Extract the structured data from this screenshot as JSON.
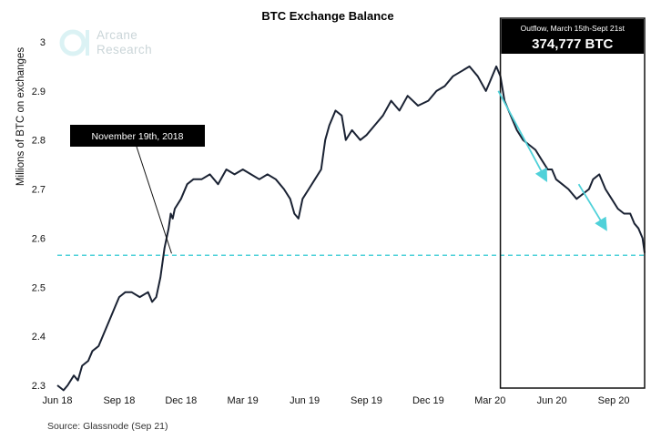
{
  "chart_data": {
    "type": "line",
    "title": "BTC Exchange Balance",
    "ylabel": "Millions of BTC on exchanges",
    "xlabel": "",
    "ylim": [
      2.3,
      3.0
    ],
    "yticks": [
      "2.3",
      "2.4",
      "2.5",
      "2.6",
      "2.7",
      "2.8",
      "2.9",
      "3"
    ],
    "xticks": [
      "Jun 18",
      "Sep 18",
      "Dec 18",
      "Mar 19",
      "Jun 19",
      "Sep 19",
      "Dec 19",
      "Mar 20",
      "Jun 20",
      "Sep 20"
    ],
    "x_range_months": [
      0,
      28.5
    ],
    "series": [
      {
        "name": "BTC Exchange Balance",
        "x": [
          0,
          0.3,
          0.5,
          0.8,
          1.0,
          1.2,
          1.5,
          1.7,
          2.0,
          2.2,
          2.5,
          2.7,
          3.0,
          3.3,
          3.6,
          4.0,
          4.4,
          4.6,
          4.8,
          5.0,
          5.2,
          5.4,
          5.5,
          5.6,
          5.7,
          6.0,
          6.3,
          6.6,
          7.0,
          7.4,
          7.8,
          8.2,
          8.6,
          9.0,
          9.4,
          9.8,
          10.2,
          10.6,
          11.0,
          11.3,
          11.5,
          11.7,
          11.9,
          12.2,
          12.5,
          12.8,
          13.0,
          13.2,
          13.5,
          13.8,
          14.0,
          14.3,
          14.7,
          15.0,
          15.4,
          15.8,
          16.2,
          16.6,
          17.0,
          17.5,
          18.0,
          18.4,
          18.8,
          19.2,
          19.6,
          20.0,
          20.4,
          20.8,
          21.0,
          21.3,
          21.5,
          21.7,
          22.0,
          22.3,
          22.6,
          22.9,
          23.2,
          23.5,
          23.8,
          24.0,
          24.2,
          24.5,
          24.8,
          25.0,
          25.2,
          25.5,
          25.8,
          26.0,
          26.3,
          26.6,
          26.9,
          27.2,
          27.5,
          27.8,
          28.0,
          28.2,
          28.4,
          28.5
        ],
        "values": [
          2.3,
          2.29,
          2.3,
          2.32,
          2.31,
          2.34,
          2.35,
          2.37,
          2.38,
          2.4,
          2.43,
          2.45,
          2.48,
          2.49,
          2.49,
          2.48,
          2.49,
          2.47,
          2.48,
          2.52,
          2.58,
          2.62,
          2.65,
          2.64,
          2.66,
          2.68,
          2.71,
          2.72,
          2.72,
          2.73,
          2.71,
          2.74,
          2.73,
          2.74,
          2.73,
          2.72,
          2.73,
          2.72,
          2.7,
          2.68,
          2.65,
          2.64,
          2.68,
          2.7,
          2.72,
          2.74,
          2.8,
          2.83,
          2.86,
          2.85,
          2.8,
          2.82,
          2.8,
          2.81,
          2.83,
          2.85,
          2.88,
          2.86,
          2.89,
          2.87,
          2.88,
          2.9,
          2.91,
          2.93,
          2.94,
          2.95,
          2.93,
          2.9,
          2.92,
          2.95,
          2.93,
          2.88,
          2.85,
          2.82,
          2.8,
          2.79,
          2.78,
          2.76,
          2.74,
          2.74,
          2.72,
          2.71,
          2.7,
          2.69,
          2.68,
          2.69,
          2.7,
          2.72,
          2.73,
          2.7,
          2.68,
          2.66,
          2.65,
          2.65,
          2.63,
          2.62,
          2.6,
          2.57
        ]
      }
    ],
    "reference_line": {
      "value": 2.565,
      "style": "dashed"
    },
    "annotations": [
      {
        "label": "November 19th, 2018",
        "x_month": 5.5,
        "y": 2.565
      },
      {
        "label": "Outflow, March 15th-Sept 21st",
        "value": "374,777 BTC",
        "x_start_month": 21.5,
        "x_end_month": 28.5
      }
    ],
    "trend_arrows": [
      {
        "from": [
          21.4,
          2.9
        ],
        "to": [
          23.7,
          2.72
        ]
      },
      {
        "from": [
          25.3,
          2.71
        ],
        "to": [
          26.6,
          2.62
        ]
      }
    ],
    "source": "Source: Glassnode (Sep 21)"
  },
  "logo": {
    "line1": "Arcane",
    "line2": "Research"
  },
  "colors": {
    "line": "#1a2233",
    "accent": "#4fd1d9",
    "callout_bg": "#000000"
  }
}
